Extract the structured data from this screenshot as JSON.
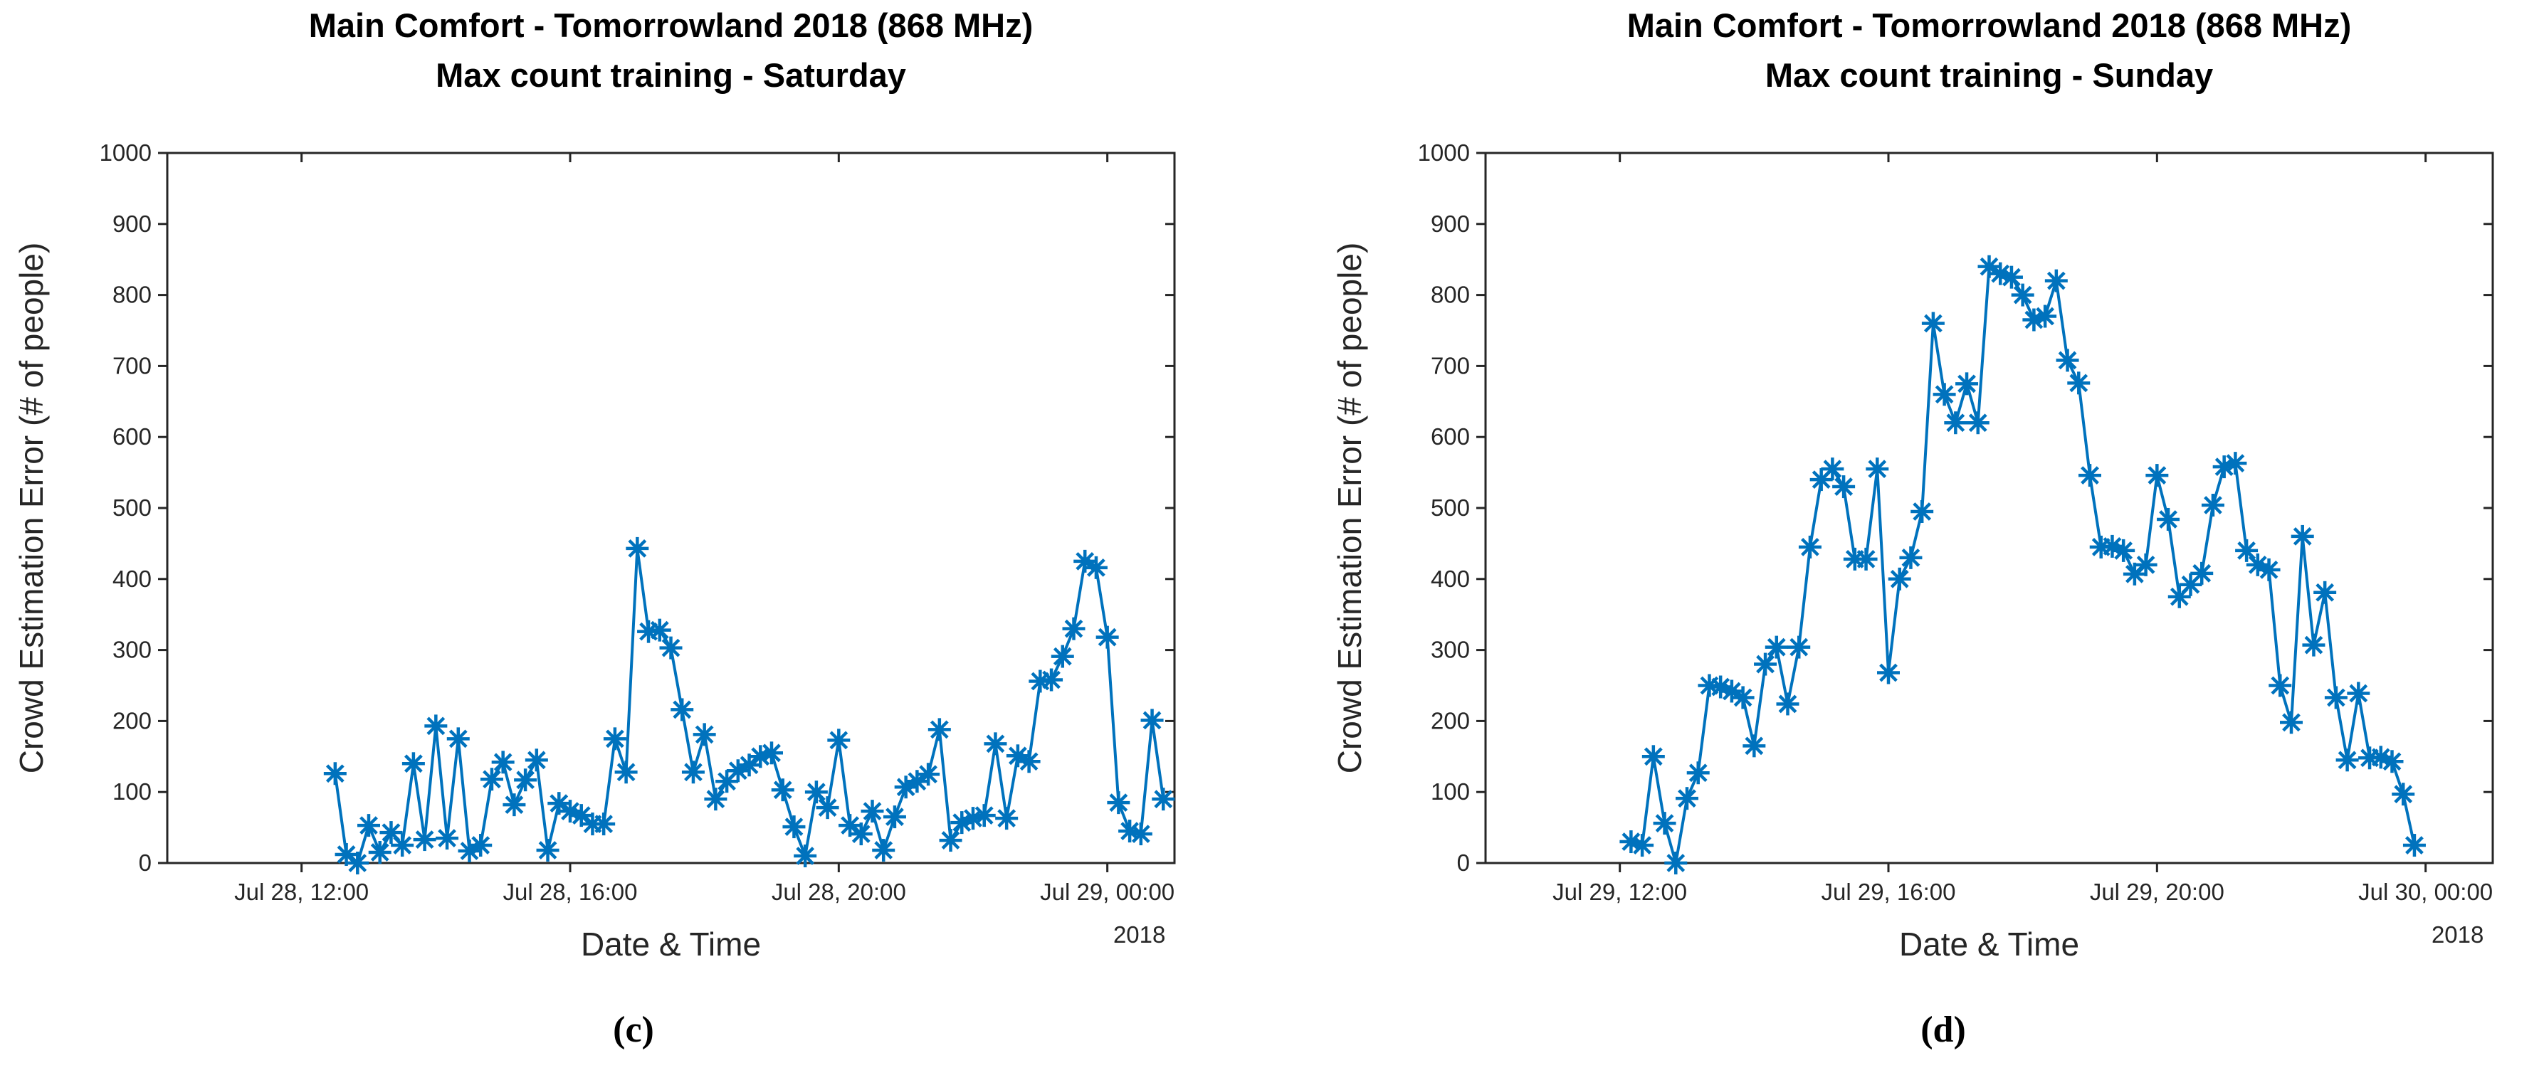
{
  "page": {
    "background": "#ffffff"
  },
  "figure": {
    "captions": {
      "left": "(c)",
      "right": "(d)"
    },
    "accent_color": "#0072BD",
    "axis_color": "#262626",
    "title_color": "#000000"
  },
  "chart_data": [
    {
      "type": "line",
      "position": "left",
      "title": "Main Comfort - Tomorrowland 2018 (868 MHz)",
      "subtitle": "Max count training - Saturday",
      "xlabel": "Date & Time",
      "ylabel": "Crowd Estimation Error (# of people)",
      "x_axis_year_label": "2018",
      "caption": "(c)",
      "grid": false,
      "legend": null,
      "ylim": [
        0,
        1000
      ],
      "yticks": [
        0,
        100,
        200,
        300,
        400,
        500,
        600,
        700,
        800,
        900,
        1000
      ],
      "xlim_hours": [
        10,
        25
      ],
      "xticks": [
        {
          "hours": 12,
          "label": "Jul 28, 12:00"
        },
        {
          "hours": 16,
          "label": "Jul 28, 16:00"
        },
        {
          "hours": 20,
          "label": "Jul 28, 20:00"
        },
        {
          "hours": 24,
          "label": "Jul 29, 00:00"
        }
      ],
      "series": [
        {
          "name": "crowd-estimation-error-saturday",
          "color": "#0072BD",
          "marker": "asterisk",
          "start_date": "Jul 28",
          "step_minutes": 10,
          "times": [
            "12:30",
            "12:40",
            "12:50",
            "13:00",
            "13:10",
            "13:20",
            "13:30",
            "13:40",
            "13:50",
            "14:00",
            "14:10",
            "14:20",
            "14:30",
            "14:40",
            "14:50",
            "15:00",
            "15:10",
            "15:20",
            "15:30",
            "15:40",
            "15:50",
            "16:00",
            "16:10",
            "16:20",
            "16:30",
            "16:40",
            "16:50",
            "17:00",
            "17:10",
            "17:20",
            "17:30",
            "17:40",
            "17:50",
            "18:00",
            "18:10",
            "18:20",
            "18:30",
            "18:40",
            "18:50",
            "19:00",
            "19:10",
            "19:20",
            "19:30",
            "19:40",
            "19:50",
            "20:00",
            "20:10",
            "20:20",
            "20:30",
            "20:40",
            "20:50",
            "21:00",
            "21:10",
            "21:20",
            "21:30",
            "21:40",
            "21:50",
            "22:00",
            "22:10",
            "22:20",
            "22:30",
            "22:40",
            "22:50",
            "23:00",
            "23:10",
            "23:20",
            "23:30",
            "23:40",
            "23:50",
            "00:00",
            "00:10",
            "00:20",
            "00:30",
            "00:40",
            "00:50"
          ],
          "values": [
            126,
            12,
            0,
            53,
            15,
            43,
            25,
            140,
            33,
            193,
            35,
            175,
            17,
            25,
            118,
            142,
            82,
            117,
            145,
            18,
            84,
            73,
            67,
            55,
            55,
            175,
            128,
            443,
            326,
            328,
            303,
            216,
            128,
            181,
            90,
            115,
            130,
            138,
            150,
            155,
            103,
            51,
            10,
            100,
            78,
            173,
            53,
            41,
            73,
            18,
            65,
            107,
            115,
            125,
            188,
            32,
            57,
            63,
            67,
            168,
            63,
            151,
            143,
            256,
            258,
            291,
            330,
            425,
            416,
            318,
            85,
            45,
            41,
            201,
            90
          ]
        }
      ]
    },
    {
      "type": "line",
      "position": "right",
      "title": "Main Comfort - Tomorrowland 2018 (868 MHz)",
      "subtitle": "Max count training - Sunday",
      "xlabel": "Date & Time",
      "ylabel": "Crowd Estimation Error (# of people)",
      "x_axis_year_label": "2018",
      "caption": "(d)",
      "grid": false,
      "legend": null,
      "ylim": [
        0,
        1000
      ],
      "yticks": [
        0,
        100,
        200,
        300,
        400,
        500,
        600,
        700,
        800,
        900,
        1000
      ],
      "xlim_hours": [
        10,
        25
      ],
      "xticks": [
        {
          "hours": 12,
          "label": "Jul 29, 12:00"
        },
        {
          "hours": 16,
          "label": "Jul 29, 16:00"
        },
        {
          "hours": 20,
          "label": "Jul 29, 20:00"
        },
        {
          "hours": 24,
          "label": "Jul 30, 00:00"
        }
      ],
      "series": [
        {
          "name": "crowd-estimation-error-sunday",
          "color": "#0072BD",
          "marker": "asterisk",
          "start_date": "Jul 29",
          "step_minutes": 10,
          "times": [
            "12:10",
            "12:20",
            "12:30",
            "12:40",
            "12:50",
            "13:00",
            "13:10",
            "13:20",
            "13:30",
            "13:40",
            "13:50",
            "14:00",
            "14:10",
            "14:20",
            "14:30",
            "14:40",
            "14:50",
            "15:00",
            "15:10",
            "15:20",
            "15:30",
            "15:40",
            "15:50",
            "16:00",
            "16:10",
            "16:20",
            "16:30",
            "16:40",
            "16:50",
            "17:00",
            "17:10",
            "17:20",
            "17:30",
            "17:40",
            "17:50",
            "18:00",
            "18:10",
            "18:20",
            "18:30",
            "18:40",
            "18:50",
            "19:00",
            "19:10",
            "19:20",
            "19:30",
            "19:40",
            "19:50",
            "20:00",
            "20:10",
            "20:20",
            "20:30",
            "20:40",
            "20:50",
            "21:00",
            "21:10",
            "21:20",
            "21:30",
            "21:40",
            "21:50",
            "22:00",
            "22:10",
            "22:20",
            "22:30",
            "22:40",
            "22:50",
            "23:00",
            "23:10",
            "23:20",
            "23:30",
            "23:40",
            "23:50"
          ],
          "values": [
            30,
            25,
            150,
            56,
            0,
            91,
            127,
            250,
            248,
            242,
            233,
            165,
            280,
            304,
            224,
            304,
            445,
            540,
            555,
            530,
            428,
            428,
            555,
            268,
            400,
            430,
            495,
            760,
            660,
            620,
            675,
            620,
            840,
            830,
            825,
            800,
            765,
            770,
            820,
            708,
            676,
            546,
            445,
            446,
            440,
            407,
            420,
            546,
            484,
            375,
            392,
            408,
            504,
            558,
            563,
            440,
            420,
            413,
            250,
            198,
            460,
            307,
            381,
            233,
            145,
            239,
            148,
            149,
            143,
            97,
            25
          ]
        }
      ]
    }
  ]
}
